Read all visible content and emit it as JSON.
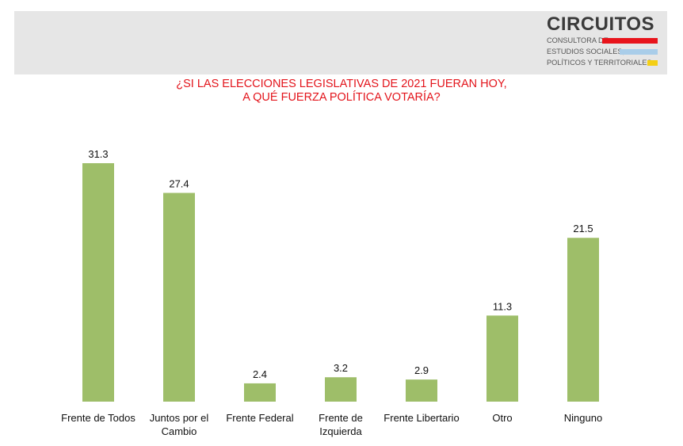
{
  "logo": {
    "title": "CIRCUITOS",
    "line1": "CONSULTORA DE",
    "line2": "ESTUDIOS SOCIALES,",
    "line3": "POLÍTICOS Y TERRITORIALES",
    "colors": [
      "#e8141b",
      "#a9cde9",
      "#f4cf15"
    ]
  },
  "question": {
    "line1": "¿SI LAS ELECCIONES LEGISLATIVAS DE 2021 FUERAN HOY,",
    "line2": "A QUÉ FUERZA POLÍTICA VOTARÍA?"
  },
  "colors": {
    "bar": "#9ebe69",
    "question": "#e3141b",
    "header_band": "#e6e6e6"
  },
  "chart_data": {
    "type": "bar",
    "categories": [
      [
        "Frente de Todos"
      ],
      [
        "Juntos por el",
        "Cambio"
      ],
      [
        "Frente Federal"
      ],
      [
        "Frente de",
        "Izquierda"
      ],
      [
        "Frente Libertario"
      ],
      [
        "Otro"
      ],
      [
        "Ninguno"
      ]
    ],
    "values": [
      31.3,
      27.4,
      2.4,
      3.2,
      2.9,
      11.3,
      21.5
    ],
    "value_labels": [
      "31.3",
      "27.4",
      "2.4",
      "3.2",
      "2.9",
      "11.3",
      "21.5"
    ],
    "ylim": [
      0,
      31.3
    ],
    "grid": false,
    "legend": "none"
  }
}
